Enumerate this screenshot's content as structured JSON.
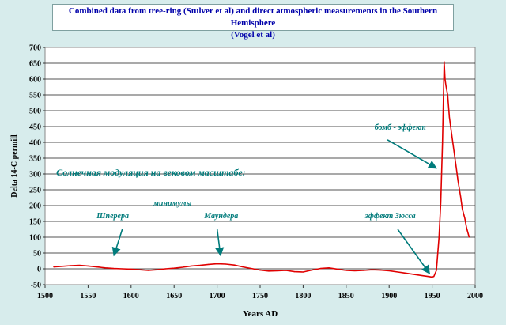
{
  "title_line1": "Combined data from tree-ring (Stulver et al) and direct atmospheric measurements in the Southern Hemisphere",
  "title_line2": "(Vogel et al)",
  "colors": {
    "background": "#d7ecec",
    "plot_bg": "#ffffff",
    "series": "#e00000",
    "annotation": "#007b7b",
    "title": "#0000aa"
  },
  "chart_data": {
    "type": "line",
    "xlabel": "Years AD",
    "ylabel": "Delta 14-C permill",
    "xlim": [
      1500,
      2000
    ],
    "ylim": [
      -50,
      700
    ],
    "xticks": [
      1500,
      1550,
      1600,
      1650,
      1700,
      1750,
      1800,
      1850,
      1900,
      1950,
      2000
    ],
    "yticks": [
      -50,
      0,
      50,
      100,
      150,
      200,
      250,
      300,
      350,
      400,
      450,
      500,
      550,
      600,
      650,
      700
    ],
    "grid": true,
    "series": [
      {
        "x": [
          1510,
          1520,
          1530,
          1540,
          1550,
          1560,
          1570,
          1580,
          1590,
          1600,
          1610,
          1620,
          1630,
          1640,
          1650,
          1660,
          1670,
          1680,
          1690,
          1700,
          1710,
          1720,
          1730,
          1740,
          1750,
          1760,
          1770,
          1780,
          1790,
          1800,
          1810,
          1820,
          1830,
          1840,
          1850,
          1860,
          1870,
          1880,
          1890,
          1900,
          1910,
          1920,
          1930,
          1940,
          1945,
          1950,
          1952,
          1955,
          1958,
          1960,
          1962,
          1963,
          1964,
          1965,
          1966,
          1968,
          1970,
          1972,
          1975,
          1978,
          1980,
          1983,
          1985,
          1988,
          1990,
          1993
        ],
        "values": [
          6,
          8,
          10,
          11,
          9,
          6,
          3,
          1,
          0,
          -1,
          -3,
          -5,
          -3,
          0,
          2,
          5,
          9,
          11,
          14,
          16,
          15,
          12,
          6,
          1,
          -4,
          -7,
          -6,
          -5,
          -9,
          -10,
          -4,
          1,
          3,
          -1,
          -5,
          -6,
          -5,
          -3,
          -4,
          -6,
          -10,
          -14,
          -18,
          -22,
          -24,
          -26,
          -24,
          -5,
          100,
          210,
          400,
          520,
          655,
          600,
          580,
          550,
          480,
          440,
          380,
          320,
          280,
          230,
          190,
          160,
          130,
          100
        ]
      }
    ],
    "annotations": [
      {
        "text": "Солнечная модуляция на вековом масштабе:",
        "x": 1513,
        "y": 295
      },
      {
        "text": "минимумы",
        "x": 1626,
        "y": 200
      },
      {
        "text": "Шперера",
        "x": 1560,
        "y": 160
      },
      {
        "text": "Маундера",
        "x": 1685,
        "y": 160
      },
      {
        "text": "эффект Зюсса",
        "x": 1872,
        "y": 160
      },
      {
        "text": "бомб - эффект",
        "x": 1883,
        "y": 440
      }
    ],
    "arrows": [
      {
        "from": [
          1590,
          127
        ],
        "to": [
          1580,
          42
        ]
      },
      {
        "from": [
          1700,
          127
        ],
        "to": [
          1704,
          42
        ]
      },
      {
        "from": [
          1910,
          125
        ],
        "to": [
          1947,
          -15
        ]
      },
      {
        "from": [
          1898,
          408
        ],
        "to": [
          1955,
          318
        ]
      }
    ]
  }
}
